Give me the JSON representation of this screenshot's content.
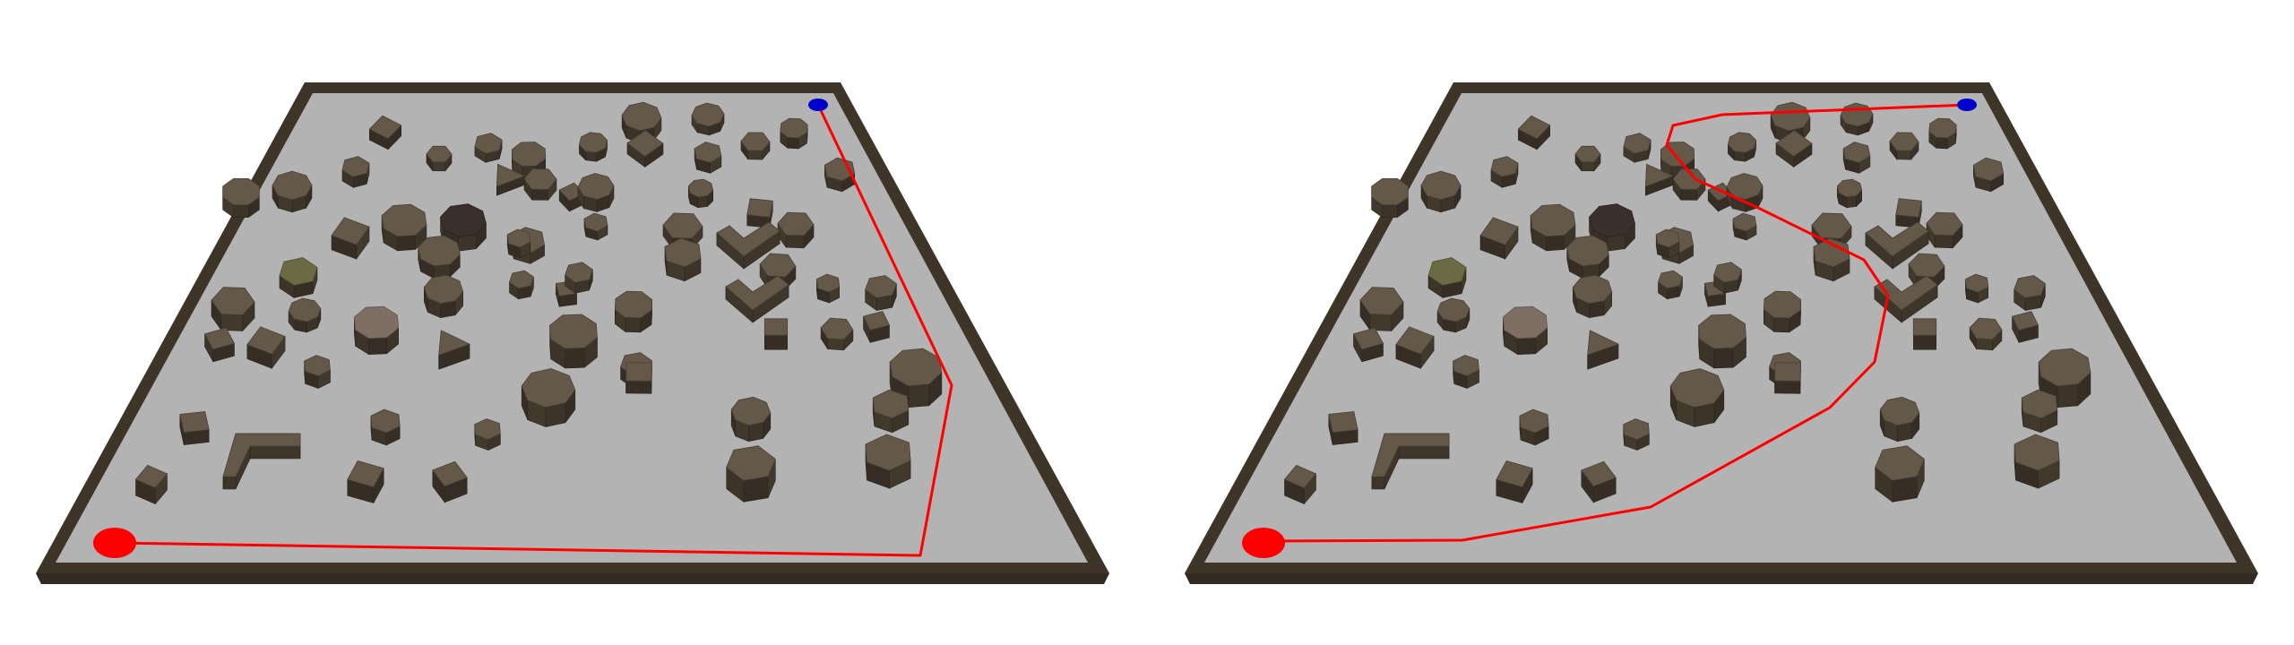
{
  "scene": {
    "description_kind": "two side-by-side 3D renders of an obstacle field with planned paths",
    "colors": {
      "background": "#ffffff",
      "floor": "#b3b3b3",
      "wall": "#3e3528",
      "wall_light": "#56493a",
      "obstacle_top": "#645849",
      "obstacle_side": "#3f362b",
      "obstacle_dark_top": "#3a2f2a",
      "obstacle_olive_top": "#6a6a45",
      "obstacle_mauve_top": "#7f6e64",
      "path": "#ff0000",
      "start": "#ff0000",
      "goal": "#0000cc"
    }
  },
  "panels": [
    {
      "name": "left-panel",
      "path_kind": "direct route along right side"
    },
    {
      "name": "right-panel",
      "path_kind": "winding route through center"
    }
  ]
}
